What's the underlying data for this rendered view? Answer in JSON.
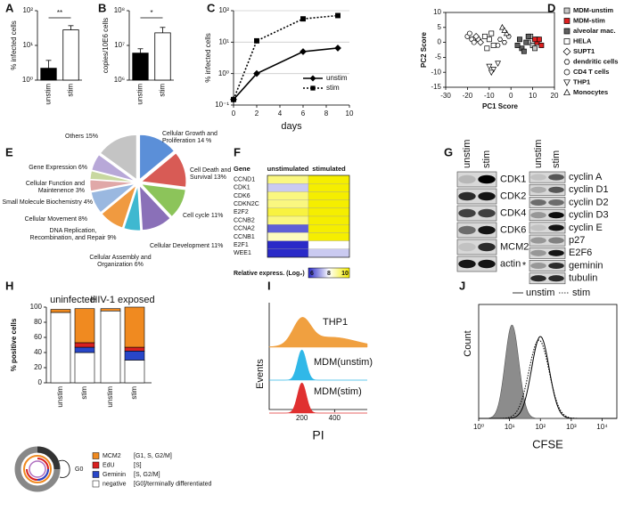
{
  "panels": {
    "A": {
      "letter": "A",
      "type": "bar",
      "log": true,
      "ylabel": "% infected cells",
      "categories": [
        "unstim",
        "stim"
      ],
      "values": [
        2.2,
        28
      ],
      "errors": [
        1.5,
        9
      ],
      "colors": [
        "#000000",
        "#ffffff"
      ],
      "ylim": [
        1,
        100
      ],
      "yticks": [
        {
          "value": 1,
          "label": "10⁰"
        },
        {
          "value": 10,
          "label": "10¹"
        },
        {
          "value": 100,
          "label": "10²"
        }
      ],
      "significance": "**"
    },
    "B": {
      "letter": "B",
      "type": "bar",
      "log": true,
      "ylabel": "copies/10E6 cells",
      "categories": [
        "unstim",
        "stim"
      ],
      "values": [
        6000000,
        23000000
      ],
      "errors": [
        2000000,
        10000000
      ],
      "colors": [
        "#000000",
        "#ffffff"
      ],
      "ylim": [
        1000000,
        100000000
      ],
      "yticks": [
        {
          "value": 1000000,
          "label": "10⁶"
        },
        {
          "value": 10000000,
          "label": "10⁷"
        },
        {
          "value": 100000000,
          "label": "10⁸"
        }
      ],
      "significance": "*"
    },
    "C": {
      "letter": "C",
      "type": "line",
      "log": true,
      "grid": true,
      "ylabel": "% infected cells",
      "xlabel": "days",
      "xlim": [
        0,
        10
      ],
      "xticks": [
        0,
        2,
        4,
        6,
        8,
        10
      ],
      "ylim": [
        0.1,
        100
      ],
      "yticks": [
        {
          "value": 0.1,
          "label": "10⁻¹"
        },
        {
          "value": 1,
          "label": "10⁰"
        },
        {
          "value": 10,
          "label": "10¹"
        },
        {
          "value": 100,
          "label": "10²"
        }
      ],
      "series": [
        {
          "name": "unstim",
          "color": "#000000",
          "dash": false,
          "marker": "diamond",
          "x": [
            0,
            2,
            6,
            9
          ],
          "values": [
            0.15,
            1,
            5,
            6.5
          ]
        },
        {
          "name": "stim",
          "color": "#000000",
          "dash": true,
          "marker": "square",
          "x": [
            0,
            2,
            6,
            9
          ],
          "values": [
            0.15,
            11,
            55,
            70
          ]
        }
      ]
    },
    "D": {
      "letter": "D",
      "type": "scatter",
      "xlabel": "PC1 Score",
      "ylabel": "PC2 Score",
      "xlim": [
        -30,
        20
      ],
      "xticks": [
        -30,
        -20,
        -10,
        0,
        10,
        20
      ],
      "ylim": [
        -15,
        10
      ],
      "yticks": [
        -15,
        -10,
        -5,
        0,
        5,
        10
      ],
      "series": [
        {
          "name": "MDM-unstim",
          "marker": "square",
          "color": "#c8c8c8",
          "x": [
            8,
            10,
            12,
            9,
            11
          ],
          "values": [
            0,
            -1,
            1,
            2,
            -2
          ]
        },
        {
          "name": "MDM-stim",
          "marker": "square",
          "color": "#e02020",
          "x": [
            12,
            13,
            14,
            11
          ],
          "values": [
            0,
            1,
            -1,
            1
          ]
        },
        {
          "name": "alveolar mac.",
          "marker": "square",
          "color": "#606060",
          "x": [
            5,
            7,
            4,
            6,
            8,
            3
          ],
          "values": [
            -2,
            0,
            1,
            -3,
            2,
            -1
          ]
        },
        {
          "name": "HELA",
          "marker": "square",
          "color": "#ffffff",
          "x": [
            -10,
            -8,
            -12,
            -9,
            -11
          ],
          "values": [
            1,
            -1,
            2,
            3,
            -2
          ]
        },
        {
          "name": "SUPT1",
          "marker": "diamond",
          "color": "#ffffff",
          "x": [
            -15,
            -14,
            -16
          ],
          "values": [
            1,
            0,
            2
          ]
        },
        {
          "name": "dendritic cells",
          "marker": "hexagon",
          "color": "#ffffff",
          "x": [
            -5,
            -3,
            -1,
            -6
          ],
          "values": [
            1,
            0,
            2,
            -1
          ]
        },
        {
          "name": "CD4 T cells",
          "marker": "circle",
          "color": "#ffffff",
          "x": [
            -20,
            -18,
            -17,
            -19
          ],
          "values": [
            2,
            1,
            0,
            3
          ]
        },
        {
          "name": "THP1",
          "marker": "triangle-down",
          "color": "#ffffff",
          "x": [
            -10,
            -8,
            -6,
            -9
          ],
          "values": [
            -8,
            -9,
            -7,
            -10
          ]
        },
        {
          "name": "Monocytes",
          "marker": "triangle-up",
          "color": "#ffffff",
          "x": [
            -4,
            -2,
            -3
          ],
          "values": [
            5,
            3,
            4
          ]
        }
      ]
    },
    "E": {
      "letter": "E",
      "type": "pie",
      "labels": [
        [
          "Cellular Growth and",
          "Proliferation 14 %"
        ],
        [
          "Cell Death and",
          "Survival 13%"
        ],
        [
          "Cell cycle 11%"
        ],
        [
          "Cellular Development 11%"
        ],
        [
          "Cellular Assembly and",
          "Organization 6%"
        ],
        [
          "DNA Replication,",
          "Recombination, and Repair 9%"
        ],
        [
          "Cellular Movement 8%"
        ],
        [
          "Small Molecule Biochemistry 4%"
        ],
        [
          "Cellular Function and",
          "Maintenence 3%"
        ],
        [
          "Gene Expression 6%"
        ],
        [
          "Others 15%"
        ]
      ],
      "values": [
        14,
        13,
        11,
        11,
        6,
        9,
        8,
        4,
        3,
        6,
        15
      ],
      "colors": [
        "#5b8fd8",
        "#d85b55",
        "#8cc45a",
        "#8a70b8",
        "#3fb8d0",
        "#f09a40",
        "#9ab8e0",
        "#e0a8a8",
        "#c8d8a0",
        "#b8a8d8",
        "#c4c4c4"
      ]
    },
    "F": {
      "letter": "F",
      "type": "heatmap",
      "header": [
        "Gene",
        "unstimulated",
        "stimulated"
      ],
      "genes": [
        "CCND1",
        "CDK1",
        "CDK6",
        "CDKN2C",
        "E2F2",
        "CCNB2",
        "CCNA2",
        "CCNB1",
        "E2F1",
        "WEE1"
      ],
      "values": [
        [
          9,
          10
        ],
        [
          7.5,
          10
        ],
        [
          9,
          10
        ],
        [
          9,
          10
        ],
        [
          9.5,
          10
        ],
        [
          9,
          10
        ],
        [
          6.5,
          10
        ],
        [
          8.5,
          10
        ],
        [
          6,
          8
        ],
        [
          6,
          7.5
        ]
      ],
      "colorbar": {
        "label": "Relative express. (Log₂)",
        "lim": [
          6,
          10
        ],
        "ticks": [
          6,
          8,
          10
        ],
        "colors": [
          "#2a2ac8",
          "#ffffff",
          "#f5ee00"
        ]
      }
    },
    "G": {
      "letter": "G",
      "columns": [
        "unstim",
        "stim"
      ],
      "left_rows": [
        "CDK1",
        "CDK2",
        "CDK4",
        "CDK6",
        "MCM2",
        "actin"
      ],
      "right_rows": [
        "cyclin A",
        "cyclin D1",
        "cyclin D2",
        "cyclin D3",
        "cyclin E",
        "p27",
        "E2F6",
        "geminin",
        "tubulin"
      ],
      "marker": "*"
    },
    "H": {
      "letter": "H",
      "type": "stacked-bar",
      "ylabel": "% positive cells",
      "groups": [
        "uninfected",
        "HIV-1 exposed"
      ],
      "categories": [
        "unstim",
        "stim",
        "unstim",
        "stim"
      ],
      "ylim": [
        0,
        100
      ],
      "yticks": [
        0,
        20,
        40,
        60,
        80,
        100
      ],
      "series": [
        {
          "name": "negative",
          "description": "[G0]/terminally differentiated",
          "color": "#ffffff",
          "values": [
            93,
            40,
            95,
            30
          ]
        },
        {
          "name": "Geminin",
          "description": "[S, G2/M]",
          "color": "#2846c8",
          "values": [
            0,
            7,
            0,
            12
          ]
        },
        {
          "name": "EdU",
          "description": "[S]",
          "color": "#d82020",
          "values": [
            0,
            6,
            0,
            5
          ]
        },
        {
          "name": "MCM2",
          "description": "[G1, S, G2/M]",
          "color": "#f08a20",
          "values": [
            4,
            45,
            3,
            53
          ]
        }
      ],
      "cycle_label": "G0"
    },
    "I": {
      "letter": "I",
      "type": "histogram",
      "xlabel": "PI",
      "ylabel": "Events",
      "xlim": [
        0,
        600
      ],
      "xticks": [
        200,
        400
      ],
      "series": [
        {
          "name": "THP1",
          "color": "#f0a040",
          "peaks": [
            200,
            380
          ]
        },
        {
          "name": "MDM(unstim)",
          "color": "#30b8e8",
          "peaks": [
            200
          ]
        },
        {
          "name": "MDM(stim)",
          "color": "#e03030",
          "peaks": [
            200
          ]
        }
      ]
    },
    "J": {
      "letter": "J",
      "type": "histogram",
      "log": true,
      "xlabel": "CFSE",
      "ylabel": "Count",
      "xlim": [
        1,
        30000
      ],
      "xticks": [
        {
          "value": 1,
          "label": "10⁰"
        },
        {
          "value": 10,
          "label": "10¹"
        },
        {
          "value": 100,
          "label": "10²"
        },
        {
          "value": 1000,
          "label": "10³"
        },
        {
          "value": 10000,
          "label": "10⁴"
        }
      ],
      "control": {
        "color": "#8c8c8c",
        "peak": 12
      },
      "series": [
        {
          "name": "unstim",
          "dash": false,
          "color": "#000000",
          "peak": 100
        },
        {
          "name": "stim",
          "dash": true,
          "color": "#000000",
          "peak": 90
        }
      ]
    }
  }
}
